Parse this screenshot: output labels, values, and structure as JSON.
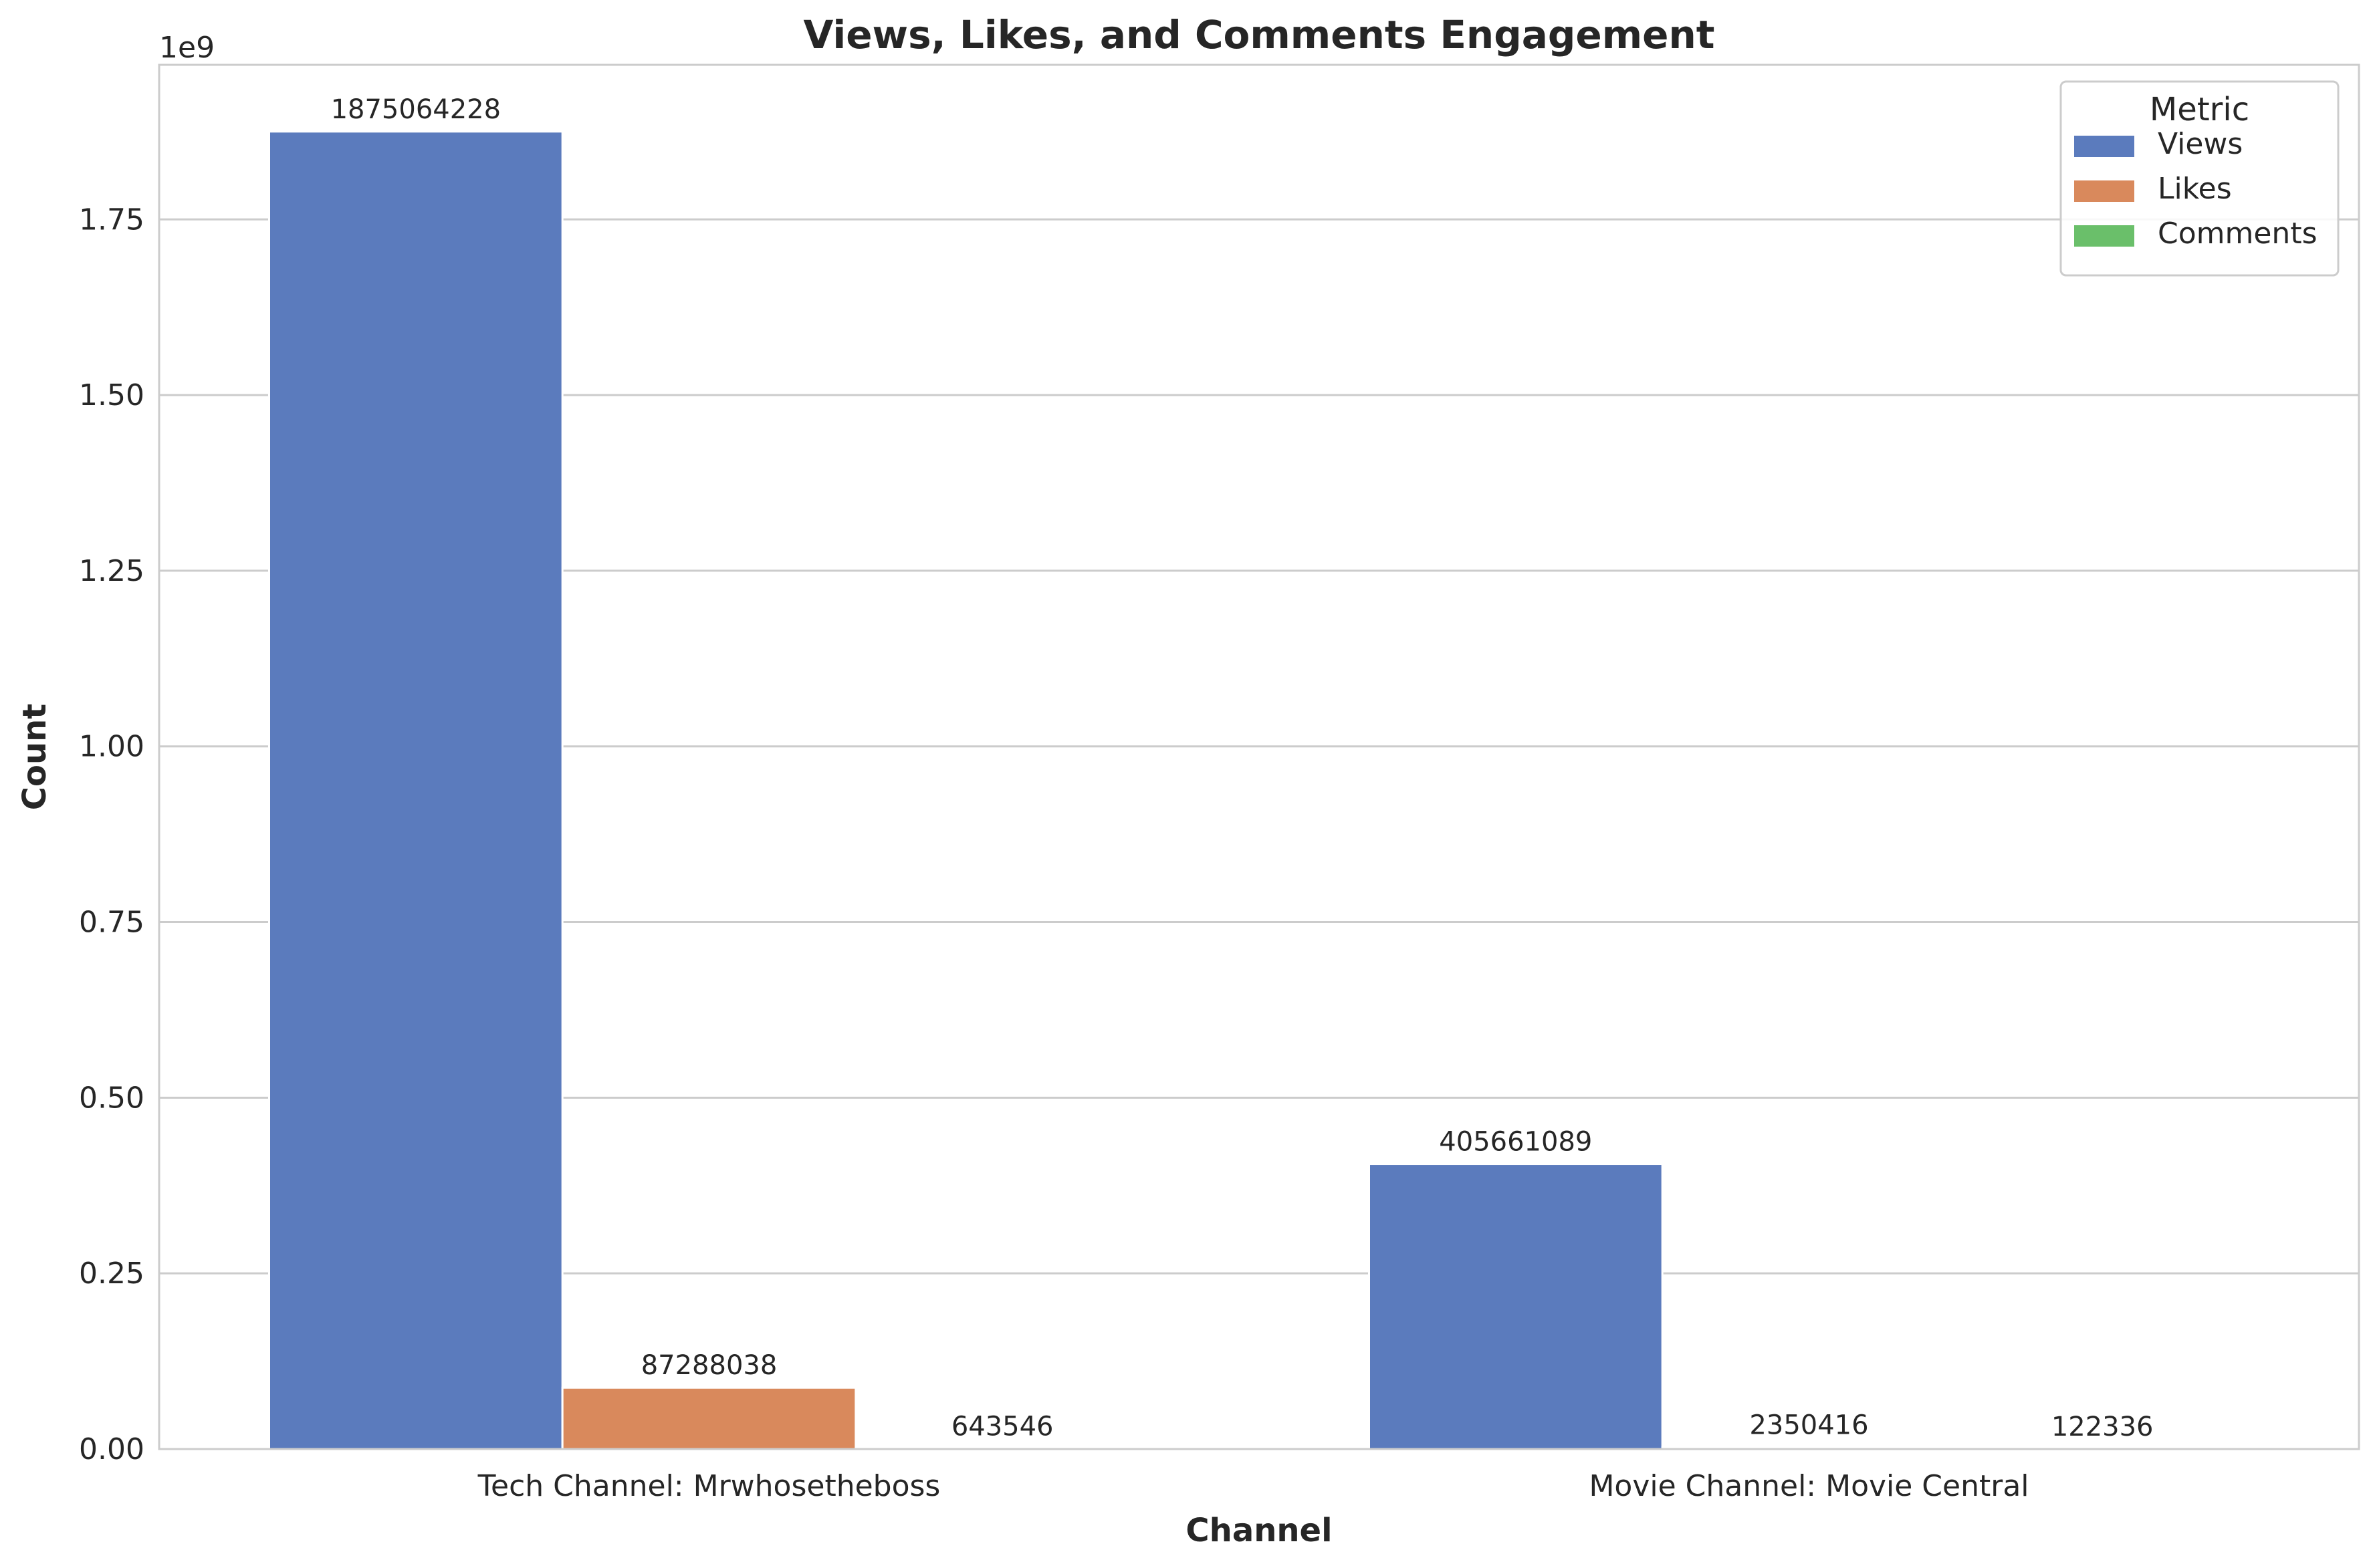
{
  "chart_data": {
    "type": "bar",
    "title": "Views, Likes, and Comments Engagement",
    "xlabel": "Channel",
    "ylabel": "Count",
    "y_offset_text": "1e9",
    "categories": [
      "Tech Channel: Mrwhosetheboss",
      "Movie Channel: Movie Central"
    ],
    "series": [
      {
        "name": "Views",
        "values": [
          1875064228,
          405661089
        ],
        "color": "#5b7bbd"
      },
      {
        "name": "Likes",
        "values": [
          87288038,
          2350416
        ],
        "color": "#d9895c"
      },
      {
        "name": "Comments",
        "values": [
          643546,
          122336
        ],
        "color": "#6abf6a"
      }
    ],
    "data_labels": [
      [
        "1875064228",
        "405661089"
      ],
      [
        "87288038",
        "2350416"
      ],
      [
        "643546",
        "122336"
      ]
    ],
    "ylim": [
      0,
      1970000000
    ],
    "yticks": [
      0,
      250000000,
      500000000,
      750000000,
      1000000000,
      1250000000,
      1500000000,
      1750000000
    ],
    "ytick_labels": [
      "0.00",
      "0.25",
      "0.50",
      "0.75",
      "1.00",
      "1.25",
      "1.50",
      "1.75"
    ],
    "grid": true,
    "legend": {
      "title": "Metric",
      "position": "top-right"
    }
  }
}
